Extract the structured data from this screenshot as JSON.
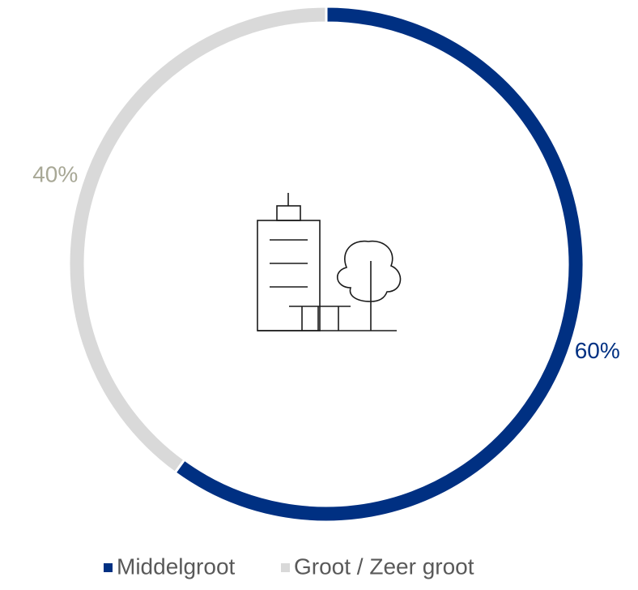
{
  "chart_data": {
    "type": "donut",
    "categories": [
      "Middelgroot",
      "Groot / Zeer groot"
    ],
    "values": [
      60,
      40
    ],
    "value_labels": [
      "60%",
      "40%"
    ],
    "colors": [
      "#003082",
      "#d9d9d9"
    ],
    "label_colors": [
      "#003082",
      "#a8a896"
    ],
    "legend": "bottom"
  }
}
